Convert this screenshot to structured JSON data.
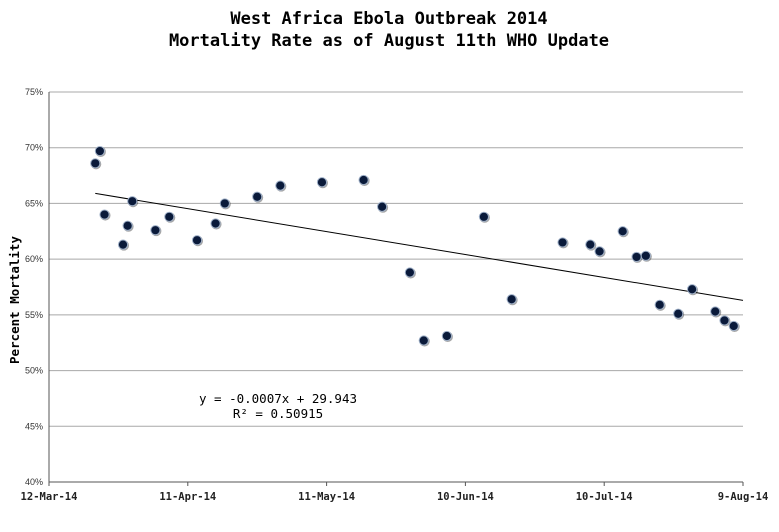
{
  "chart_data": {
    "type": "scatter",
    "title": [
      "West Africa Ebola Outbreak 2014",
      "Mortality Rate as of August 11th WHO Update"
    ],
    "xlabel": "",
    "ylabel": "Percent Mortality",
    "x_axis": {
      "type": "date",
      "range": [
        "2014-03-12",
        "2014-08-09"
      ],
      "ticks": [
        {
          "date": "2014-03-12",
          "label": "12-Mar-14"
        },
        {
          "date": "2014-04-11",
          "label": "11-Apr-14"
        },
        {
          "date": "2014-05-11",
          "label": "11-May-14"
        },
        {
          "date": "2014-06-10",
          "label": "10-Jun-14"
        },
        {
          "date": "2014-07-10",
          "label": "10-Jul-14"
        },
        {
          "date": "2014-08-09",
          "label": "9-Aug-14"
        }
      ]
    },
    "y_axis": {
      "range": [
        40,
        75
      ],
      "ticks": [
        {
          "value": 40,
          "label": "40%"
        },
        {
          "value": 45,
          "label": "45%"
        },
        {
          "value": 50,
          "label": "50%"
        },
        {
          "value": 55,
          "label": "55%"
        },
        {
          "value": 60,
          "label": "60%"
        },
        {
          "value": 65,
          "label": "65%"
        },
        {
          "value": 70,
          "label": "70%"
        },
        {
          "value": 75,
          "label": "75%"
        }
      ]
    },
    "grid": true,
    "series": [
      {
        "marker_color": "#0a1a3a",
        "points": [
          {
            "x": "2014-03-22",
            "y": 68.6
          },
          {
            "x": "2014-03-23",
            "y": 69.7
          },
          {
            "x": "2014-03-24",
            "y": 64.0
          },
          {
            "x": "2014-03-28",
            "y": 61.3
          },
          {
            "x": "2014-03-29",
            "y": 63.0
          },
          {
            "x": "2014-03-30",
            "y": 65.2
          },
          {
            "x": "2014-04-04",
            "y": 62.6
          },
          {
            "x": "2014-04-07",
            "y": 63.8
          },
          {
            "x": "2014-04-13",
            "y": 61.7
          },
          {
            "x": "2014-04-17",
            "y": 63.2
          },
          {
            "x": "2014-04-19",
            "y": 65.0
          },
          {
            "x": "2014-04-26",
            "y": 65.6
          },
          {
            "x": "2014-05-01",
            "y": 66.6
          },
          {
            "x": "2014-05-10",
            "y": 66.9
          },
          {
            "x": "2014-05-19",
            "y": 67.1
          },
          {
            "x": "2014-05-23",
            "y": 64.7
          },
          {
            "x": "2014-05-29",
            "y": 58.8
          },
          {
            "x": "2014-06-01",
            "y": 52.7
          },
          {
            "x": "2014-06-06",
            "y": 53.1
          },
          {
            "x": "2014-06-14",
            "y": 63.8
          },
          {
            "x": "2014-06-20",
            "y": 56.4
          },
          {
            "x": "2014-07-01",
            "y": 61.5
          },
          {
            "x": "2014-07-07",
            "y": 61.3
          },
          {
            "x": "2014-07-09",
            "y": 60.7
          },
          {
            "x": "2014-07-14",
            "y": 62.5
          },
          {
            "x": "2014-07-17",
            "y": 60.2
          },
          {
            "x": "2014-07-19",
            "y": 60.3
          },
          {
            "x": "2014-07-22",
            "y": 55.9
          },
          {
            "x": "2014-07-26",
            "y": 55.1
          },
          {
            "x": "2014-07-29",
            "y": 57.3
          },
          {
            "x": "2014-08-03",
            "y": 55.3
          },
          {
            "x": "2014-08-05",
            "y": 54.5
          },
          {
            "x": "2014-08-07",
            "y": 54.0
          }
        ]
      }
    ],
    "trendline": {
      "type": "linear",
      "equation": "y = -0.0007x + 29.943",
      "r_squared": "R² = 0.50915",
      "start": {
        "x": "2014-03-22",
        "y": 65.9
      },
      "end": {
        "x": "2014-08-09",
        "y": 56.3
      }
    }
  }
}
